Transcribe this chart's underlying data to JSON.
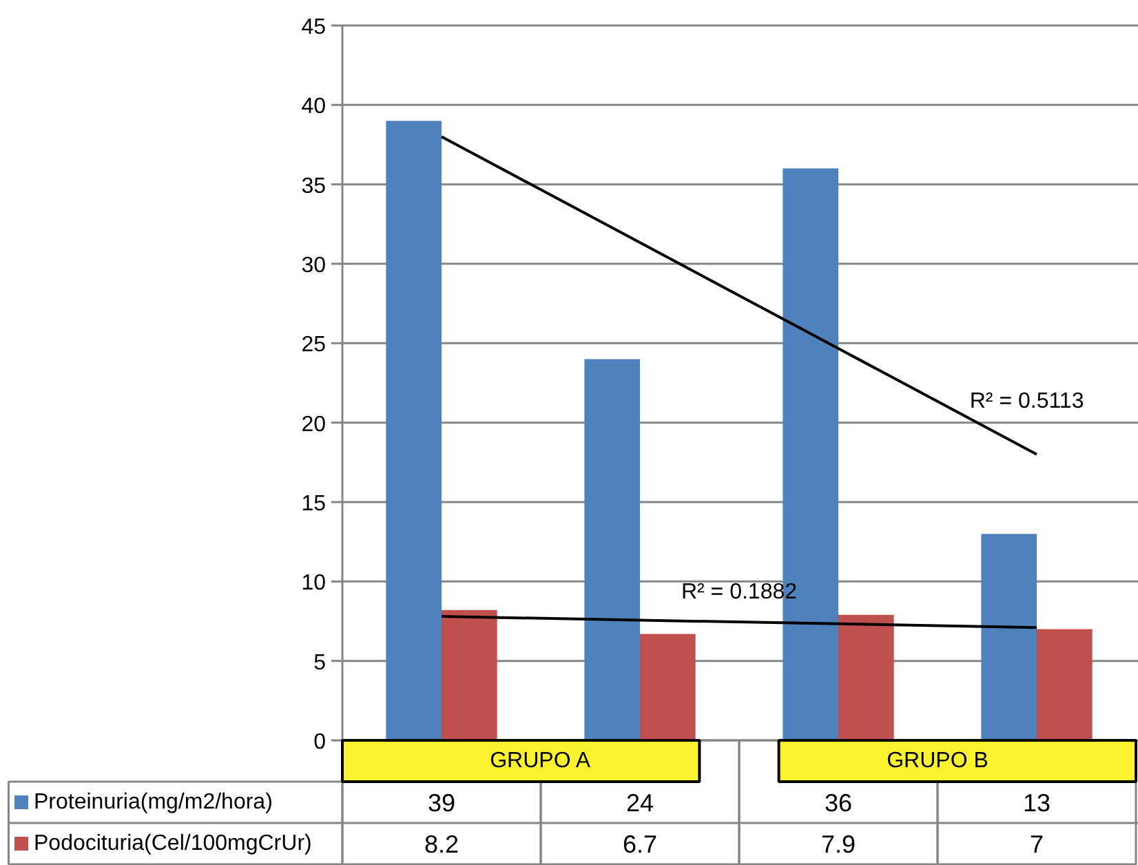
{
  "chart_data": {
    "type": "bar",
    "categories": [
      null,
      null,
      null,
      null
    ],
    "series": [
      {
        "name": "Proteinuria(mg/m2/hora)",
        "color": "#4f81bd",
        "values": [
          39,
          24,
          36,
          13
        ],
        "value_labels": [
          "39",
          "24",
          "36",
          "13"
        ]
      },
      {
        "name": "Podocituria(Cel/100mgCrUr)",
        "color": "#c0504d",
        "values": [
          8.2,
          6.7,
          7.9,
          7
        ],
        "value_labels": [
          "8.2",
          "6.7",
          "7.9",
          "7"
        ]
      },
      {
        "type": "line",
        "values": [
          38,
          null,
          null,
          18
        ],
        "color": "#000000"
      },
      {
        "type": "line",
        "values": [
          7.8,
          null,
          null,
          7.1
        ],
        "color": "#000000"
      }
    ],
    "ylim": [
      0,
      45
    ],
    "yticks": [
      0,
      5,
      10,
      15,
      20,
      25,
      30,
      35,
      40,
      45
    ],
    "grid": "y",
    "legend": "bottom left",
    "annotations": [
      "R² = 0.5113",
      "R² = 0.1882",
      "GRUPO A",
      "GRUPO B"
    ]
  }
}
